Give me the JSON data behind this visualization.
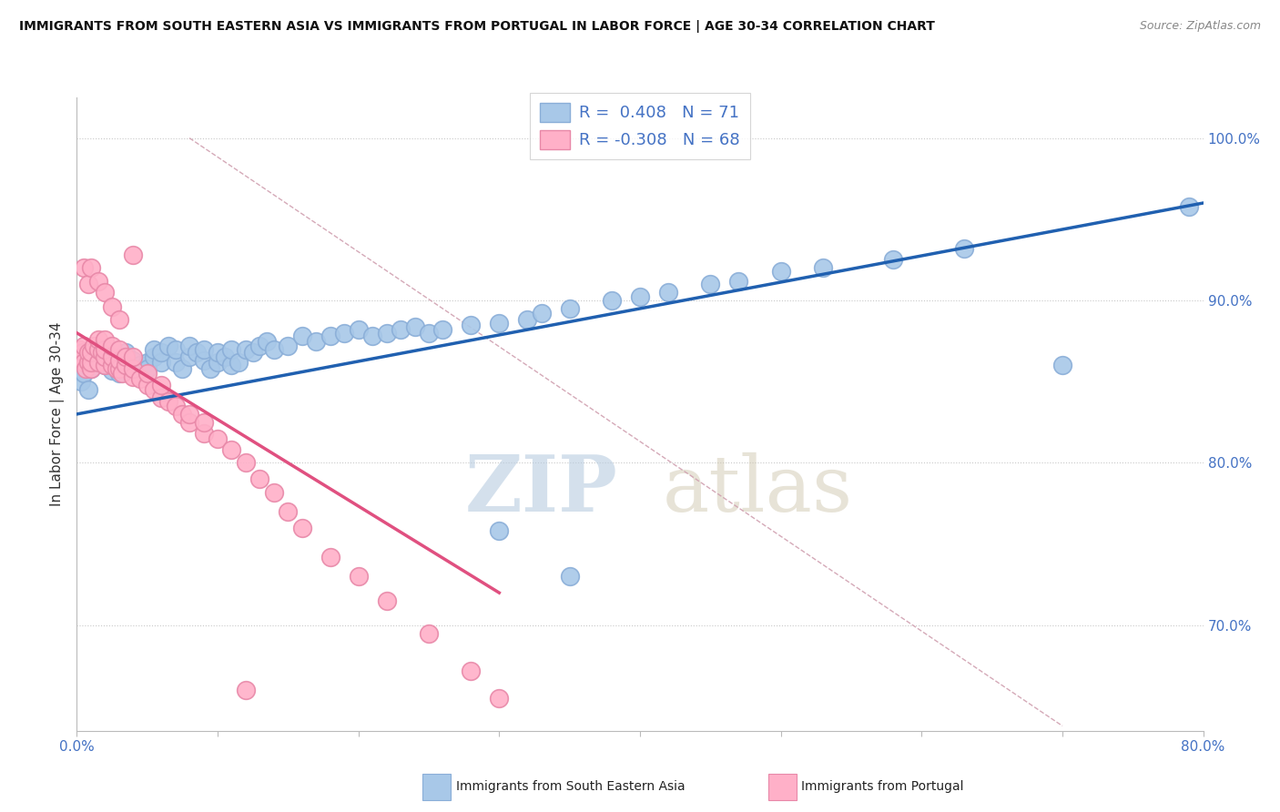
{
  "title": "IMMIGRANTS FROM SOUTH EASTERN ASIA VS IMMIGRANTS FROM PORTUGAL IN LABOR FORCE | AGE 30-34 CORRELATION CHART",
  "source": "Source: ZipAtlas.com",
  "ylabel": "In Labor Force | Age 30-34",
  "xlim": [
    0.0,
    0.8
  ],
  "ylim": [
    0.635,
    1.025
  ],
  "blue_color": "#A8C8E8",
  "pink_color": "#FFB0C8",
  "blue_line_color": "#2060B0",
  "pink_line_color": "#E05080",
  "diag_line_color": "#D0A0B0",
  "legend_blue_text": "R =  0.408   N = 71",
  "legend_pink_text": "R = -0.308   N = 68",
  "watermark_zip": "ZIP",
  "watermark_atlas": "atlas",
  "blue_line_x0": 0.0,
  "blue_line_y0": 0.83,
  "blue_line_x1": 0.8,
  "blue_line_y1": 0.96,
  "pink_line_x0": 0.0,
  "pink_line_y0": 0.88,
  "pink_line_x1": 0.3,
  "pink_line_y1": 0.72,
  "diag_line_x0": 0.08,
  "diag_line_y0": 1.0,
  "diag_line_x1": 0.7,
  "diag_line_y1": 0.638,
  "blue_scatter_x": [
    0.003,
    0.005,
    0.008,
    0.01,
    0.01,
    0.02,
    0.02,
    0.025,
    0.03,
    0.03,
    0.035,
    0.04,
    0.04,
    0.045,
    0.05,
    0.05,
    0.055,
    0.055,
    0.06,
    0.06,
    0.065,
    0.07,
    0.07,
    0.075,
    0.08,
    0.08,
    0.085,
    0.09,
    0.09,
    0.095,
    0.1,
    0.1,
    0.105,
    0.11,
    0.11,
    0.115,
    0.12,
    0.125,
    0.13,
    0.135,
    0.14,
    0.15,
    0.16,
    0.17,
    0.18,
    0.19,
    0.2,
    0.21,
    0.22,
    0.23,
    0.24,
    0.25,
    0.26,
    0.28,
    0.3,
    0.32,
    0.33,
    0.35,
    0.38,
    0.4,
    0.42,
    0.45,
    0.47,
    0.5,
    0.53,
    0.58,
    0.63,
    0.7,
    0.79,
    0.3,
    0.35
  ],
  "blue_scatter_y": [
    0.85,
    0.855,
    0.845,
    0.858,
    0.862,
    0.86,
    0.865,
    0.857,
    0.862,
    0.855,
    0.868,
    0.858,
    0.863,
    0.86,
    0.862,
    0.858,
    0.865,
    0.87,
    0.862,
    0.868,
    0.872,
    0.862,
    0.87,
    0.858,
    0.865,
    0.872,
    0.868,
    0.863,
    0.87,
    0.858,
    0.862,
    0.868,
    0.865,
    0.86,
    0.87,
    0.862,
    0.87,
    0.868,
    0.872,
    0.875,
    0.87,
    0.872,
    0.878,
    0.875,
    0.878,
    0.88,
    0.882,
    0.878,
    0.88,
    0.882,
    0.884,
    0.88,
    0.882,
    0.885,
    0.886,
    0.888,
    0.892,
    0.895,
    0.9,
    0.902,
    0.905,
    0.91,
    0.912,
    0.918,
    0.92,
    0.925,
    0.932,
    0.86,
    0.958,
    0.758,
    0.73
  ],
  "pink_scatter_x": [
    0.002,
    0.003,
    0.004,
    0.005,
    0.005,
    0.006,
    0.008,
    0.008,
    0.01,
    0.01,
    0.01,
    0.012,
    0.015,
    0.015,
    0.015,
    0.018,
    0.02,
    0.02,
    0.02,
    0.02,
    0.025,
    0.025,
    0.025,
    0.028,
    0.03,
    0.03,
    0.03,
    0.032,
    0.035,
    0.035,
    0.04,
    0.04,
    0.04,
    0.045,
    0.05,
    0.05,
    0.055,
    0.06,
    0.06,
    0.065,
    0.07,
    0.075,
    0.08,
    0.08,
    0.09,
    0.09,
    0.1,
    0.11,
    0.12,
    0.13,
    0.14,
    0.15,
    0.16,
    0.18,
    0.2,
    0.22,
    0.25,
    0.28,
    0.3,
    0.005,
    0.008,
    0.01,
    0.015,
    0.02,
    0.025,
    0.03,
    0.04,
    0.12
  ],
  "pink_scatter_y": [
    0.87,
    0.865,
    0.868,
    0.862,
    0.872,
    0.858,
    0.862,
    0.868,
    0.858,
    0.862,
    0.868,
    0.872,
    0.862,
    0.87,
    0.876,
    0.868,
    0.86,
    0.865,
    0.87,
    0.876,
    0.86,
    0.865,
    0.872,
    0.858,
    0.858,
    0.863,
    0.87,
    0.855,
    0.86,
    0.865,
    0.853,
    0.858,
    0.865,
    0.852,
    0.848,
    0.855,
    0.845,
    0.84,
    0.848,
    0.838,
    0.835,
    0.83,
    0.825,
    0.83,
    0.818,
    0.825,
    0.815,
    0.808,
    0.8,
    0.79,
    0.782,
    0.77,
    0.76,
    0.742,
    0.73,
    0.715,
    0.695,
    0.672,
    0.655,
    0.92,
    0.91,
    0.92,
    0.912,
    0.905,
    0.896,
    0.888,
    0.928,
    0.66
  ]
}
